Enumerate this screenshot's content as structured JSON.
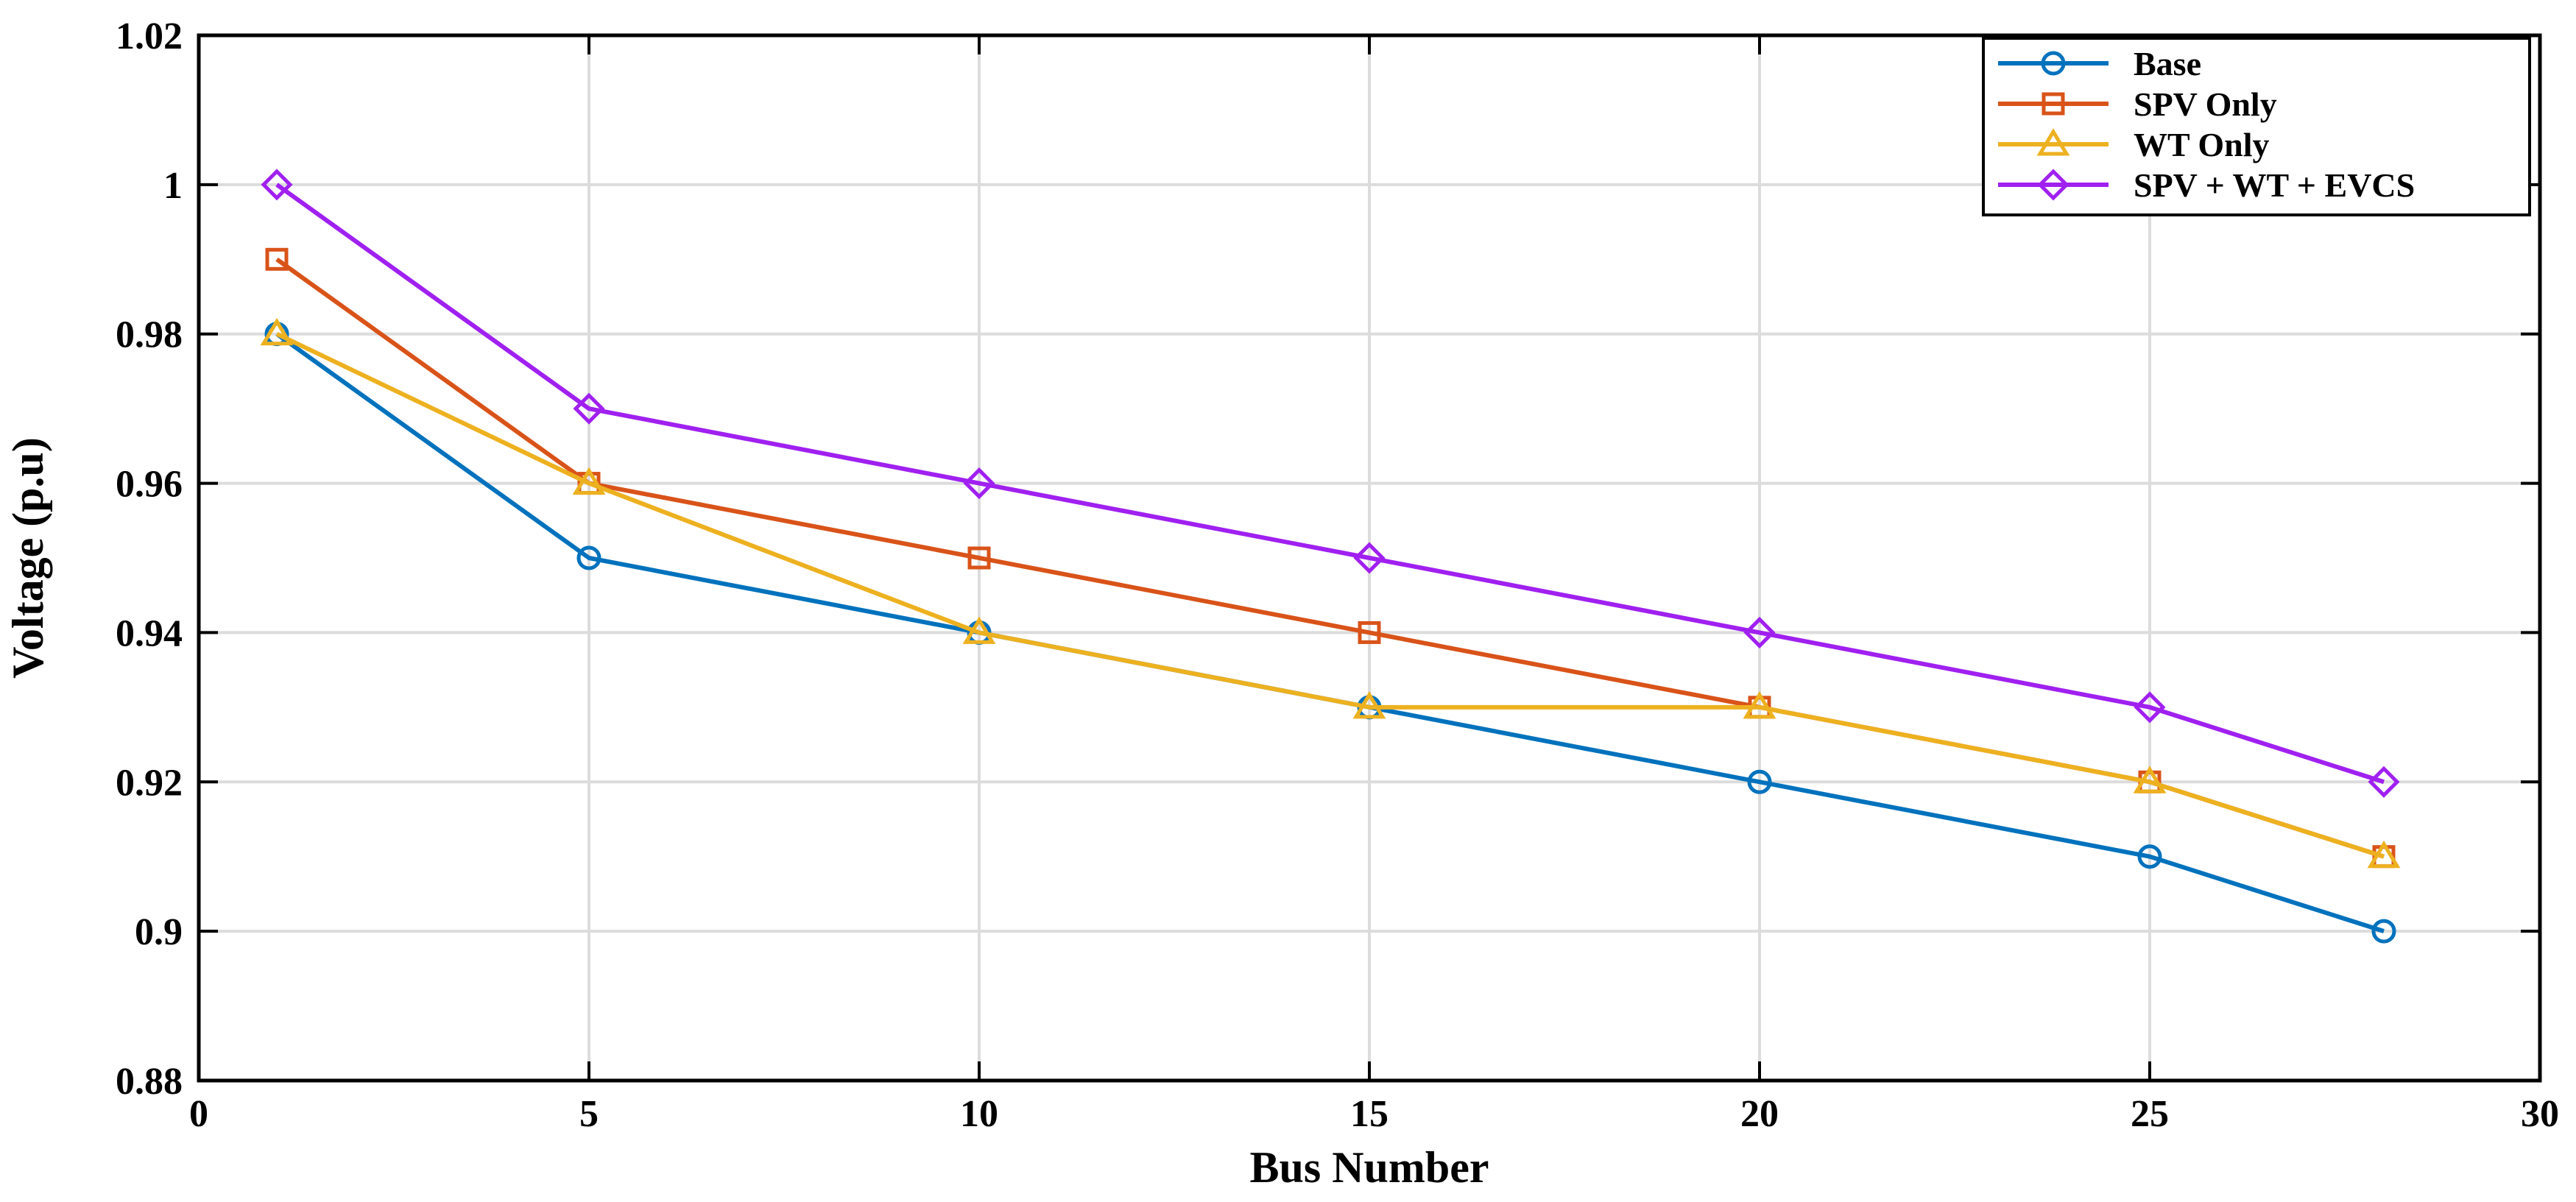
{
  "chart_data": {
    "type": "line",
    "title": "",
    "xlabel": "Bus Number",
    "ylabel": "Voltage (p.u)",
    "xlim": [
      0,
      30
    ],
    "ylim": [
      0.88,
      1.02
    ],
    "xticks": [
      0,
      5,
      10,
      15,
      20,
      25,
      30
    ],
    "xtick_labels": [
      "0",
      "5",
      "10",
      "15",
      "20",
      "25",
      "30"
    ],
    "yticks": [
      0.88,
      0.9,
      0.92,
      0.94,
      0.96,
      0.98,
      1.0,
      1.02
    ],
    "ytick_labels": [
      "0.88",
      "0.9",
      "0.92",
      "0.94",
      "0.96",
      "0.98",
      "1",
      "1.02"
    ],
    "grid": true,
    "legend_position": "top-right",
    "x": [
      1,
      5,
      10,
      15,
      20,
      25,
      28
    ],
    "series": [
      {
        "name": "Base",
        "color": "#0072BD",
        "marker": "circle",
        "values": [
          0.98,
          0.95,
          0.94,
          0.93,
          0.92,
          0.91,
          0.9
        ]
      },
      {
        "name": "SPV Only",
        "color": "#D95319",
        "marker": "square",
        "values": [
          0.99,
          0.96,
          0.95,
          0.94,
          0.93,
          0.92,
          0.91
        ]
      },
      {
        "name": "WT Only",
        "color": "#EDB120",
        "marker": "triangle",
        "values": [
          0.98,
          0.96,
          0.94,
          0.93,
          0.93,
          0.92,
          0.91
        ]
      },
      {
        "name": "SPV + WT + EVCS",
        "color": "#A020F0",
        "marker": "diamond",
        "values": [
          1.0,
          0.97,
          0.96,
          0.95,
          0.94,
          0.93,
          0.92
        ]
      }
    ]
  }
}
